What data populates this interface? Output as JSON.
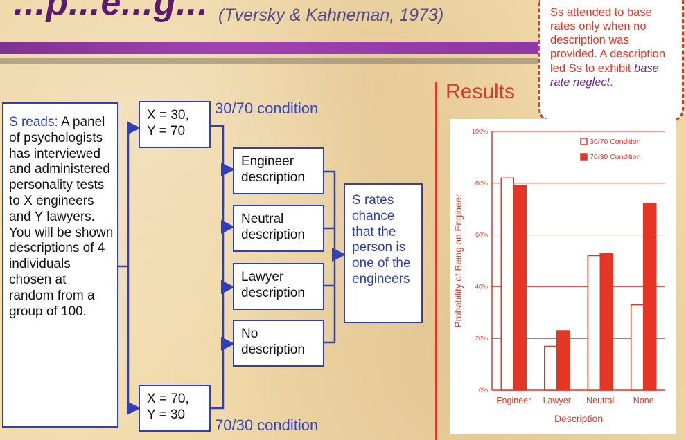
{
  "slide": {
    "title_fragment": "...p...e...g...",
    "citation": "(Tversky & Kahneman, 1973)"
  },
  "diagram": {
    "prompt_label": "S reads:",
    "prompt_text": " A panel of psychologists has interviewed and administered personality tests to X engineers and Y lawyers. You will be shown descriptions of 4 individuals chosen at random from a group of 100.",
    "condition_top": {
      "line1": "X = 30,",
      "line2": "Y = 70",
      "label": "30/70 condition"
    },
    "condition_bottom": {
      "line1": "X = 70,",
      "line2": "Y = 30",
      "label": "70/30 condition"
    },
    "descriptions": [
      {
        "line1": "Engineer",
        "line2": "description"
      },
      {
        "line1": "Neutral",
        "line2": "description"
      },
      {
        "line1": "Lawyer",
        "line2": "description"
      },
      {
        "line1": "No",
        "line2": "description"
      }
    ],
    "rating_text": "S rates chance that the person is one of the engineers"
  },
  "callout": {
    "text": "Ss attended to base rates only when no description was provided. A description led Ss to exhibit ",
    "emphasis": "base rate neglect",
    "end": "."
  },
  "results_label": "Results",
  "chart_data": {
    "type": "bar",
    "categories": [
      "Engineer",
      "Lawyer",
      "Neutral",
      "None"
    ],
    "series": [
      {
        "name": "30/70 Condition",
        "values": [
          82,
          17,
          52,
          33
        ],
        "fill": "#ffffff",
        "stroke": "#e53525"
      },
      {
        "name": "70/30 Condition",
        "values": [
          79,
          23,
          53,
          72
        ],
        "fill": "#e53525",
        "stroke": "#e53525"
      }
    ],
    "xlabel": "Description",
    "ylabel": "Probability of Being an Engineer",
    "ylim": [
      0,
      100
    ],
    "yticks": [
      "0%",
      "20%",
      "40%",
      "60%",
      "80%",
      "100%"
    ],
    "ytick_values": [
      0,
      20,
      40,
      60,
      80,
      100
    ],
    "grid": true,
    "legend_position": "top-right",
    "color": "#e53525"
  }
}
